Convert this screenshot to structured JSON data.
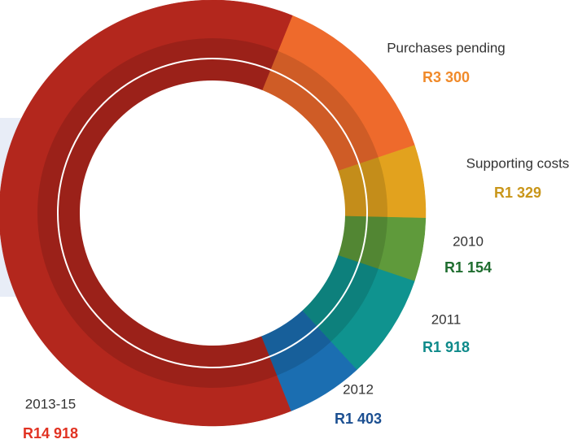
{
  "chart_data": {
    "type": "donut",
    "categories": [
      "Purchases pending",
      "Supporting costs",
      "2010",
      "2011",
      "2012",
      "2013-15"
    ],
    "values": [
      3300,
      1329,
      1154,
      1918,
      1403,
      14918
    ],
    "value_labels": [
      "R3 300",
      "R1 329",
      "R1 154",
      "R1 918",
      "R1 403",
      "R14 918"
    ],
    "colors": [
      "#ee6a2c",
      "#e2a21e",
      "#5f9a3b",
      "#0f938f",
      "#1b6eb1",
      "#b3271d"
    ],
    "label_colors": [
      "#f08a2a",
      "#c9961a",
      "#1f6d2f",
      "#0e8a8a",
      "#1b4f91",
      "#e13222"
    ]
  }
}
